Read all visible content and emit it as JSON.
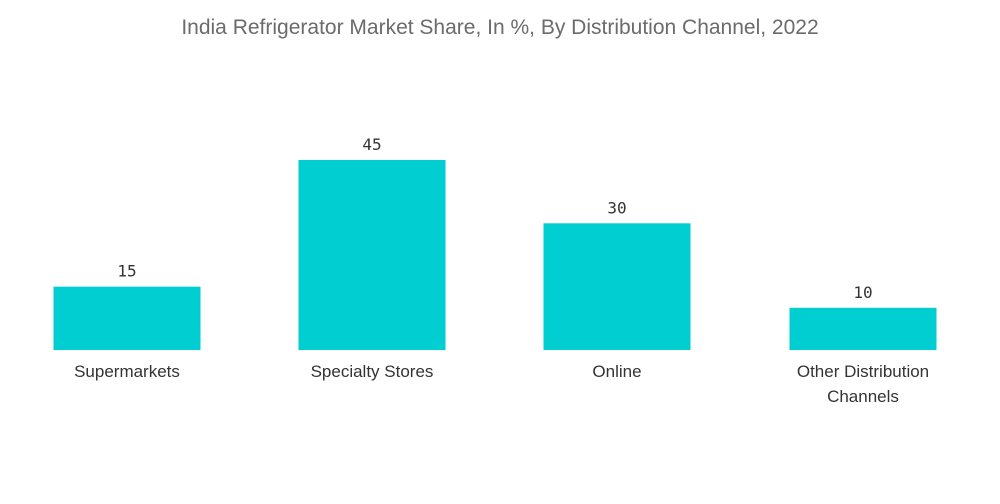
{
  "chart_data": {
    "type": "bar",
    "title": "India Refrigerator Market Share, In %, By Distribution Channel, 2022",
    "categories": [
      "Supermarkets",
      "Specialty Stores",
      "Online",
      "Other Distribution Channels"
    ],
    "category_lines": [
      [
        "Supermarkets"
      ],
      [
        "Specialty Stores"
      ],
      [
        "Online"
      ],
      [
        "Other Distribution",
        "Channels"
      ]
    ],
    "values": [
      15,
      45,
      30,
      10
    ],
    "xlabel": "",
    "ylabel": "",
    "ylim": [
      0,
      45
    ],
    "grid": false,
    "legend": "none",
    "bar_color": "#00CED1"
  }
}
